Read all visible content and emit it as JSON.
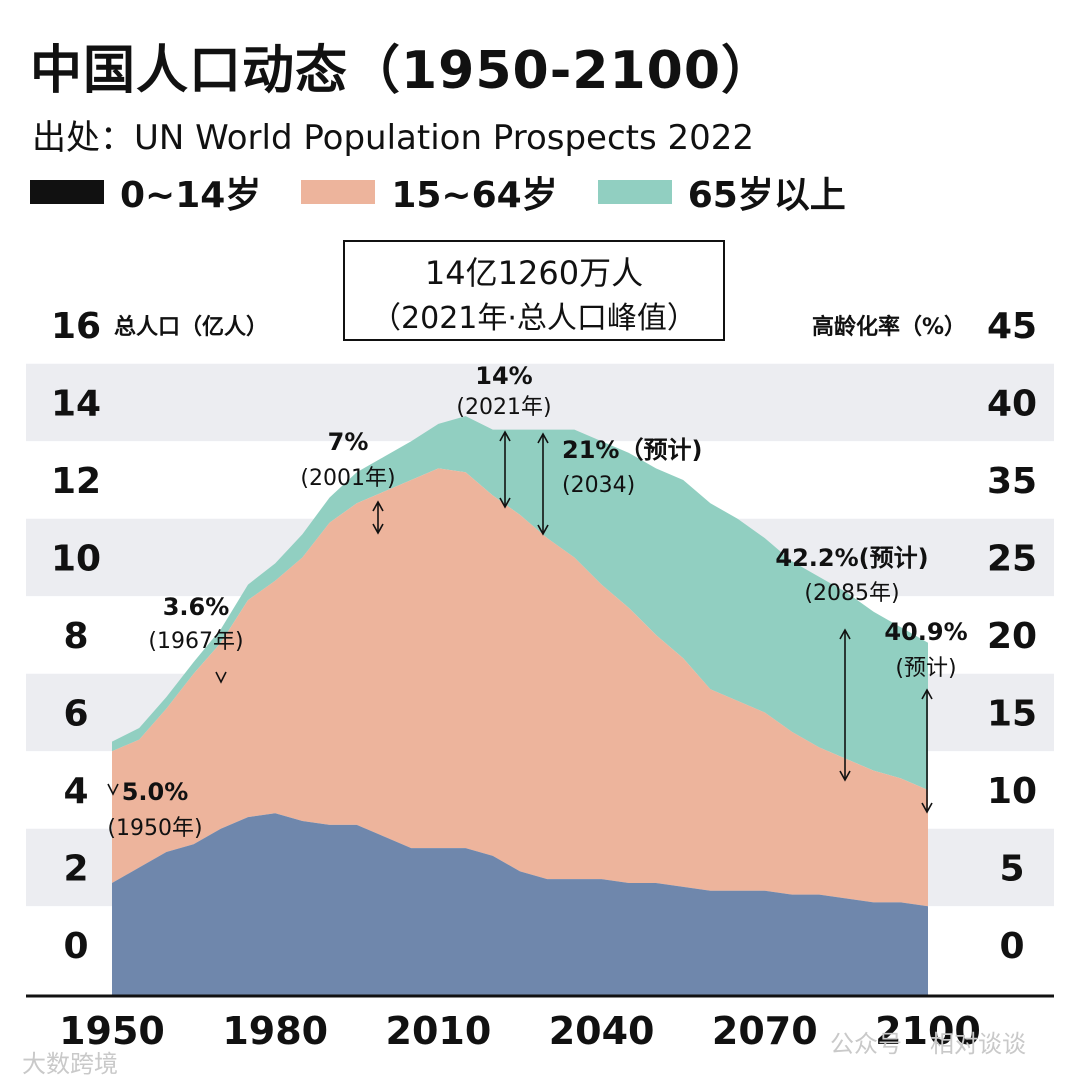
{
  "title": "中国人口动态（1950-2100）",
  "subtitle": "出处：UN World Population Prospects 2022",
  "legend": [
    {
      "label": "0~14岁",
      "color": "#111111"
    },
    {
      "label": "15~64岁",
      "color": "#EDB49C"
    },
    {
      "label": "65岁以上",
      "color": "#91CFC1"
    }
  ],
  "colors": {
    "age_0_14_area": "#6F87AC",
    "age_15_64_area": "#EDB49C",
    "age_65_plus_area": "#91CFC1",
    "band_light": "#ECEDF1",
    "band_white": "#FFFFFF"
  },
  "watermarks": [
    "大数跨境",
    "公众号",
    "相对谈谈"
  ],
  "chart_data": {
    "type": "area",
    "title": "中国人口动态（1950-2100）",
    "ylabel_left": "总人口（亿人）",
    "ylabel_right": "高龄化率（%）",
    "ylim_left": [
      0,
      16
    ],
    "ylim_right": [
      0,
      45
    ],
    "yticks_left": [
      "0",
      "2",
      "4",
      "6",
      "8",
      "10",
      "12",
      "14",
      "16"
    ],
    "yticks_right": [
      "0",
      "5",
      "10",
      "15",
      "20",
      "25",
      "35",
      "40",
      "45"
    ],
    "xlim": [
      1950,
      2100
    ],
    "xticks": [
      "1950",
      "1980",
      "2010",
      "2040",
      "2070",
      "2100"
    ],
    "x": [
      1950,
      1955,
      1960,
      1965,
      1970,
      1975,
      1980,
      1985,
      1990,
      1995,
      2000,
      2005,
      2010,
      2015,
      2020,
      2025,
      2030,
      2035,
      2040,
      2045,
      2050,
      2055,
      2060,
      2065,
      2070,
      2075,
      2080,
      2085,
      2090,
      2095,
      2100
    ],
    "series": [
      {
        "name": "0~14岁",
        "values": [
          1.6,
          2.0,
          2.4,
          2.6,
          3.0,
          3.3,
          3.4,
          3.2,
          3.1,
          3.1,
          2.8,
          2.5,
          2.5,
          2.5,
          2.3,
          1.9,
          1.7,
          1.7,
          1.7,
          1.6,
          1.6,
          1.5,
          1.4,
          1.4,
          1.4,
          1.3,
          1.3,
          1.2,
          1.1,
          1.1,
          1.0
        ]
      },
      {
        "name": "15~64岁",
        "values": [
          3.4,
          3.3,
          3.7,
          4.4,
          4.8,
          5.6,
          6.0,
          6.8,
          7.8,
          8.3,
          8.9,
          9.5,
          9.8,
          9.7,
          9.3,
          9.2,
          8.8,
          8.3,
          7.6,
          7.1,
          6.4,
          5.9,
          5.2,
          4.9,
          4.6,
          4.2,
          3.8,
          3.6,
          3.4,
          3.2,
          3.0
        ]
      },
      {
        "name": "65岁以上",
        "values": [
          0.25,
          0.3,
          0.3,
          0.3,
          0.35,
          0.4,
          0.45,
          0.6,
          0.65,
          0.8,
          0.9,
          1.0,
          1.15,
          1.45,
          1.7,
          2.2,
          2.8,
          3.3,
          3.7,
          4.0,
          4.3,
          4.6,
          4.8,
          4.7,
          4.5,
          4.4,
          4.4,
          4.3,
          4.1,
          3.9,
          3.8
        ]
      }
    ],
    "peak_callout": [
      "14亿1260万人",
      "（2021年·总人口峰值）"
    ],
    "annotations": [
      {
        "pct": "5.0%",
        "year": "(1950年)",
        "x": 1950
      },
      {
        "pct": "3.6%",
        "year": "(1967年)",
        "x": 1967
      },
      {
        "pct": "7%",
        "year": "(2001年)",
        "x": 2001
      },
      {
        "pct": "14%",
        "year": "(2021年)",
        "x": 2021
      },
      {
        "pct": "21%（预计)",
        "year": "(2034)",
        "x": 2034
      },
      {
        "pct": "42.2%(预计)",
        "year": "(2085年)",
        "x": 2085
      },
      {
        "pct": "40.9%",
        "year": "(预计)",
        "x": 2100
      }
    ]
  }
}
